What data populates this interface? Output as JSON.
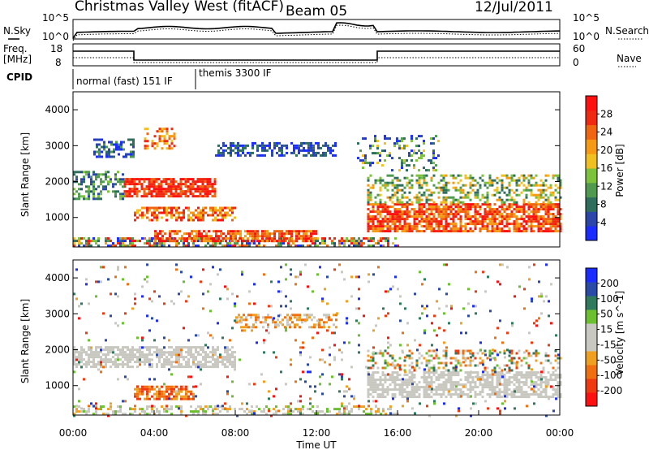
{
  "header": {
    "station": "Christmas Valley West (fitACF)",
    "beam": "Beam 05",
    "date": "12/Jul/2011"
  },
  "left_labels": {
    "nsky": "N.Sky",
    "freq": "Freq.",
    "freq_unit": "[MHz]",
    "cpid": "CPID"
  },
  "right_labels": {
    "nsearch": "N.Search",
    "nave": "Nave"
  },
  "noise_panel": {
    "ytick_low": "10^0",
    "ytick_high": "10^5",
    "rtick_low": "10^0",
    "rtick_high": "10^5"
  },
  "freq_panel": {
    "lticks": [
      "8",
      "18"
    ],
    "rticks": [
      "0",
      "60"
    ]
  },
  "cpid_panel": {
    "mode1": "normal (fast) 151 IF",
    "mode2": "themis 3300 IF"
  },
  "colors": {
    "power_scale": [
      "#1a2cff",
      "#2a46a8",
      "#2f6e5c",
      "#4f9a4f",
      "#7cc23a",
      "#f0c020",
      "#f59a12",
      "#f06510",
      "#ef2a10",
      "#ff1010"
    ],
    "velocity_scale": [
      "#1a2cff",
      "#2a4aa8",
      "#2f7a5c",
      "#6cc030",
      "#c8c8c0",
      "#c8c8c0",
      "#f0a020",
      "#f07010",
      "#ef3a10",
      "#ff1010"
    ]
  },
  "chart_data": [
    {
      "type": "heatmap",
      "name": "power-panel",
      "xlabel": "",
      "ylabel": "Slant Range [km]",
      "xlim": [
        0,
        24
      ],
      "ylim": [
        180,
        4500
      ],
      "yticks": [
        "1000",
        "2000",
        "3000",
        "4000"
      ],
      "colorbar": {
        "label": "Power [dB]",
        "ticks": [
          "4",
          "8",
          "12",
          "16",
          "20",
          "24",
          "28"
        ]
      }
    },
    {
      "type": "heatmap",
      "name": "velocity-panel",
      "xlabel": "Time UT",
      "ylabel": "Slant Range [km]",
      "xlim": [
        0,
        24
      ],
      "ylim": [
        180,
        4500
      ],
      "xticks": [
        "00:00",
        "04:00",
        "08:00",
        "12:00",
        "16:00",
        "20:00",
        "00:00"
      ],
      "yticks": [
        "1000",
        "2000",
        "3000",
        "4000"
      ],
      "colorbar": {
        "label": "Velocity [m s^-1]",
        "ticks": [
          "200",
          "100",
          "50",
          "15",
          "-15",
          "-50",
          "-100",
          "-200"
        ]
      }
    }
  ]
}
